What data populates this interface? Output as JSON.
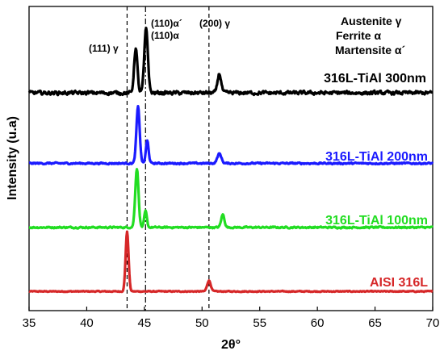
{
  "chart_data": {
    "type": "line",
    "xlabel": "2θ°",
    "ylabel": "Intensity (u.a)",
    "xlim": [
      35,
      70
    ],
    "xticks": [
      35,
      40,
      45,
      50,
      55,
      60,
      65,
      70
    ],
    "yticks_shown": false,
    "grid": false,
    "legend_text": [
      "Austenite γ",
      "Ferrite α",
      "Martensite α´"
    ],
    "legend_position": "top-right",
    "peak_annotations": [
      {
        "label": "(111) γ",
        "x": 43.5
      },
      {
        "label": "(110)α´",
        "x": 45.1
      },
      {
        "label": "(110)α",
        "x": 45.1
      },
      {
        "label": "(200) γ",
        "x": 50.6
      }
    ],
    "series": [
      {
        "name": "AISI 316L",
        "color": "#d62728",
        "baseline": 0.05,
        "noise": 0.012,
        "peaks": [
          {
            "x": 43.5,
            "height": 0.93,
            "width": 0.18
          },
          {
            "x": 50.6,
            "height": 0.17,
            "width": 0.22
          }
        ]
      },
      {
        "name": "316L-TiAl 100nm",
        "color": "#22dd22",
        "baseline": 1.05,
        "noise": 0.02,
        "peaks": [
          {
            "x": 44.35,
            "height": 0.92,
            "width": 0.2
          },
          {
            "x": 45.1,
            "height": 0.25,
            "width": 0.16
          },
          {
            "x": 51.8,
            "height": 0.2,
            "width": 0.2
          }
        ]
      },
      {
        "name": "316L-TiAl 200nm",
        "color": "#1a1aff",
        "baseline": 2.05,
        "noise": 0.02,
        "peaks": [
          {
            "x": 44.45,
            "height": 0.88,
            "width": 0.2
          },
          {
            "x": 45.25,
            "height": 0.35,
            "width": 0.17
          },
          {
            "x": 51.5,
            "height": 0.15,
            "width": 0.25
          }
        ]
      },
      {
        "name": "316L-TiAl 300nm",
        "color": "#000000",
        "baseline": 3.15,
        "noise": 0.045,
        "peaks": [
          {
            "x": 44.25,
            "height": 0.7,
            "width": 0.2
          },
          {
            "x": 45.15,
            "height": 1.0,
            "width": 0.22
          },
          {
            "x": 51.5,
            "height": 0.3,
            "width": 0.22
          }
        ]
      }
    ]
  },
  "plot_labels": [
    {
      "text": "AISI 316L",
      "color": "#d62728"
    },
    {
      "text": "316L-TiAl 100nm",
      "color": "#22dd22"
    },
    {
      "text": "316L-TiAl 200nm",
      "color": "#1a1aff"
    },
    {
      "text": "316L-TiAl 300nm",
      "color": "#000000"
    }
  ]
}
